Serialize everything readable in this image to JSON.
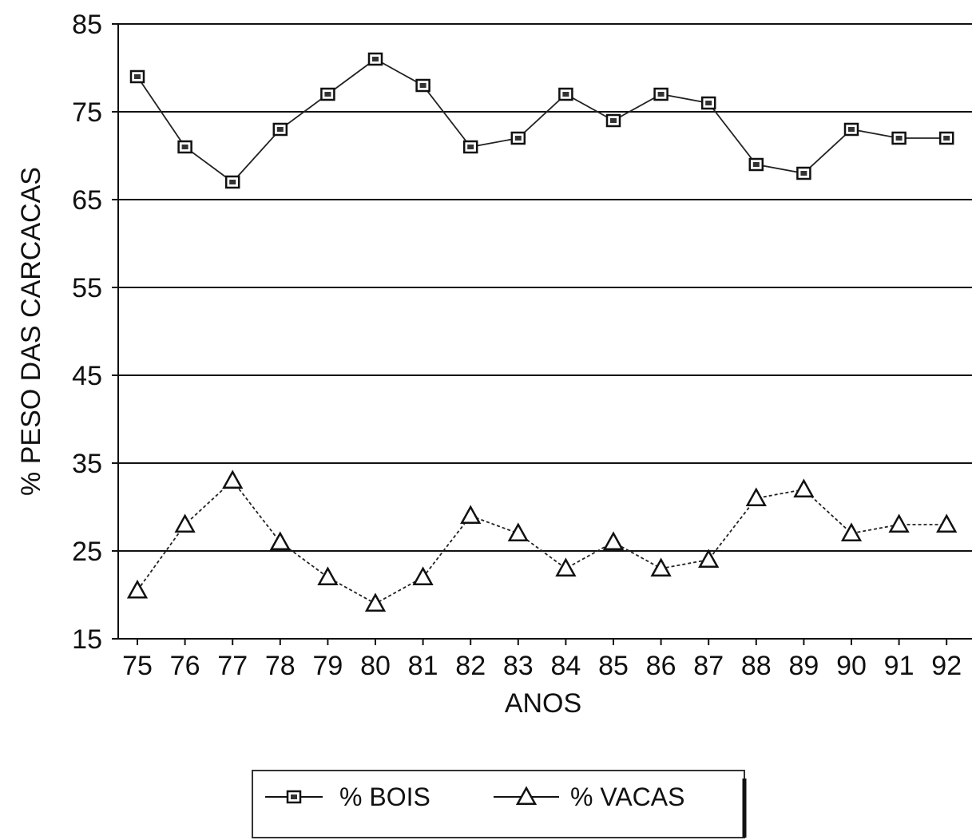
{
  "chart_data": {
    "type": "line",
    "title": "",
    "xlabel": "ANOS",
    "ylabel": "% PESO DAS CARCACAS",
    "categories": [
      "75",
      "76",
      "77",
      "78",
      "79",
      "80",
      "81",
      "82",
      "83",
      "84",
      "85",
      "86",
      "87",
      "88",
      "89",
      "90",
      "91",
      "92"
    ],
    "ylim": [
      15,
      85
    ],
    "yticks": [
      15,
      25,
      35,
      45,
      55,
      65,
      75,
      85
    ],
    "grid": "horizontal",
    "legend_position": "bottom-center",
    "series": [
      {
        "name": "% BOIS",
        "marker": "square",
        "line_style": "solid",
        "color": "#222222",
        "values": [
          79,
          71,
          67,
          73,
          77,
          81,
          78,
          71,
          72,
          77,
          74,
          77,
          76,
          69,
          68,
          73,
          72,
          72
        ]
      },
      {
        "name": "% VACAS",
        "marker": "triangle",
        "line_style": "dashed",
        "color": "#222222",
        "values": [
          20.5,
          28,
          33,
          26,
          22,
          19,
          22,
          29,
          27,
          23,
          26,
          23,
          24,
          31,
          32,
          27,
          28,
          28
        ]
      }
    ]
  }
}
